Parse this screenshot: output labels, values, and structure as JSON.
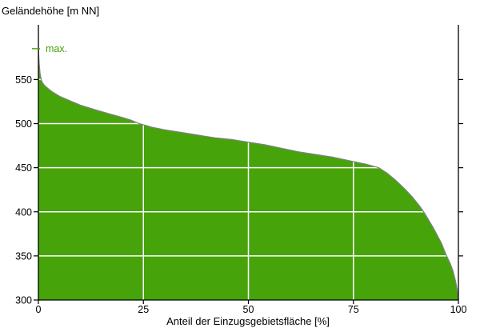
{
  "chart_data": {
    "type": "area",
    "ylabel": "Geländehöhe [m NN]",
    "xlabel": "Anteil der Einzugsgebietsfläche [%]",
    "x_ticks": [
      0,
      25,
      50,
      75,
      100
    ],
    "y_ticks": [
      300,
      350,
      400,
      450,
      500,
      550
    ],
    "xlim": [
      0,
      100
    ],
    "ylim": [
      300,
      612
    ],
    "grid": "white lines drawn over filled area; vertical at 25/50/75, horizontal at 350-550",
    "legend": "none",
    "annotations": [
      {
        "label": "max.",
        "x": 0,
        "y": 585
      }
    ],
    "series": [
      {
        "x": [
          0,
          0.2,
          0.4,
          0.7,
          1,
          1.5,
          2,
          3,
          4,
          5,
          6,
          8,
          10,
          12,
          14,
          17,
          20,
          22,
          24,
          27,
          30,
          34,
          38,
          42,
          46,
          50,
          54,
          58,
          62,
          66,
          70,
          73,
          75,
          78,
          81,
          83,
          85,
          87,
          89,
          91,
          92,
          93,
          94,
          95,
          96,
          97,
          98,
          98.7,
          99.3,
          99.7,
          100
        ],
        "y": [
          585,
          568,
          557,
          549,
          546,
          543,
          541,
          537,
          534,
          531,
          529,
          525,
          521,
          518,
          515,
          511,
          507,
          504,
          500,
          496,
          493,
          490,
          487,
          484,
          482,
          479,
          476,
          472,
          468,
          465,
          462,
          459,
          457,
          454,
          450,
          444,
          436,
          427,
          417,
          405,
          398,
          390,
          382,
          373,
          364,
          352,
          342,
          333,
          322,
          312,
          300
        ]
      }
    ],
    "colors": {
      "fill": "#46A40A",
      "curve_line": "#808080",
      "axis": "#000000",
      "grid": "#FFFFFF",
      "annotation": "#46A40A",
      "background": "#FFFFFF"
    }
  }
}
